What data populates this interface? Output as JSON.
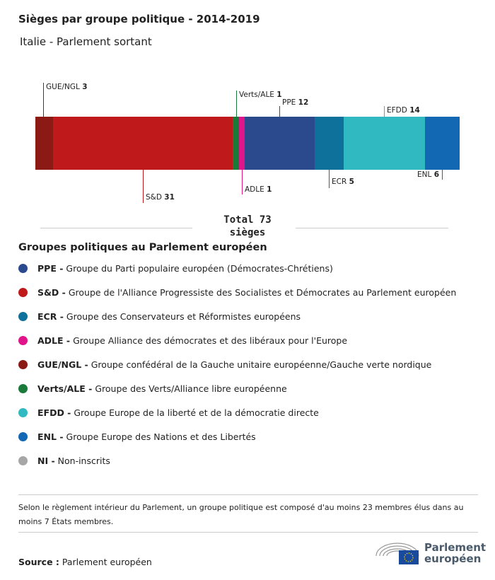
{
  "chart_data": {
    "type": "bar",
    "title": "Sièges par groupe politique - 2014-2019",
    "subtitle": "Italie - Parlement sortant",
    "total_label": "Total 73 sièges",
    "total": 73,
    "series": [
      {
        "name": "GUE/NGL",
        "value": 3,
        "color": "#8b1a14"
      },
      {
        "name": "S&D",
        "value": 31,
        "color": "#c0191b"
      },
      {
        "name": "Verts/ALE",
        "value": 1,
        "color": "#1a7a3a"
      },
      {
        "name": "ADLE",
        "value": 1,
        "color": "#e0158a"
      },
      {
        "name": "PPE",
        "value": 12,
        "color": "#2b4a8e"
      },
      {
        "name": "ECR",
        "value": 5,
        "color": "#0e719c"
      },
      {
        "name": "EFDD",
        "value": 14,
        "color": "#30b9c0"
      },
      {
        "name": "ENL",
        "value": 6,
        "color": "#1368b3"
      }
    ]
  },
  "legend": {
    "title": "Groupes politiques au Parlement européen",
    "items": [
      {
        "abbr": "PPE -",
        "desc": "Groupe du Parti populaire européen (Démocrates-Chrétiens)",
        "color": "#2b4a8e"
      },
      {
        "abbr": "S&D -",
        "desc": "Groupe de l'Alliance Progressiste des Socialistes et Démocrates au Parlement européen",
        "color": "#c0191b"
      },
      {
        "abbr": "ECR -",
        "desc": "Groupe des Conservateurs et Réformistes européens",
        "color": "#0e719c"
      },
      {
        "abbr": "ADLE -",
        "desc": "Groupe Alliance des démocrates et des libéraux pour l'Europe",
        "color": "#e0158a"
      },
      {
        "abbr": "GUE/NGL -",
        "desc": "Groupe confédéral de la Gauche unitaire européenne/Gauche verte nordique",
        "color": "#8b1a14"
      },
      {
        "abbr": "Verts/ALE -",
        "desc": "Groupe des Verts/Alliance libre européenne",
        "color": "#1a7a3a"
      },
      {
        "abbr": "EFDD -",
        "desc": "Groupe Europe de la liberté et de la démocratie directe",
        "color": "#30b9c0"
      },
      {
        "abbr": "ENL -",
        "desc": "Groupe Europe des Nations et des Libertés",
        "color": "#1368b3"
      },
      {
        "abbr": "NI -",
        "desc": "Non-inscrits",
        "color": "#a6a6a6"
      }
    ]
  },
  "note": "Selon le règlement intérieur du Parlement, un groupe politique est composé d'au moins 23 membres élus dans au moins 7 États membres.",
  "source": {
    "label": "Source :",
    "value": "Parlement européen"
  },
  "logo": {
    "text1": "Parlement",
    "text2": "européen"
  }
}
